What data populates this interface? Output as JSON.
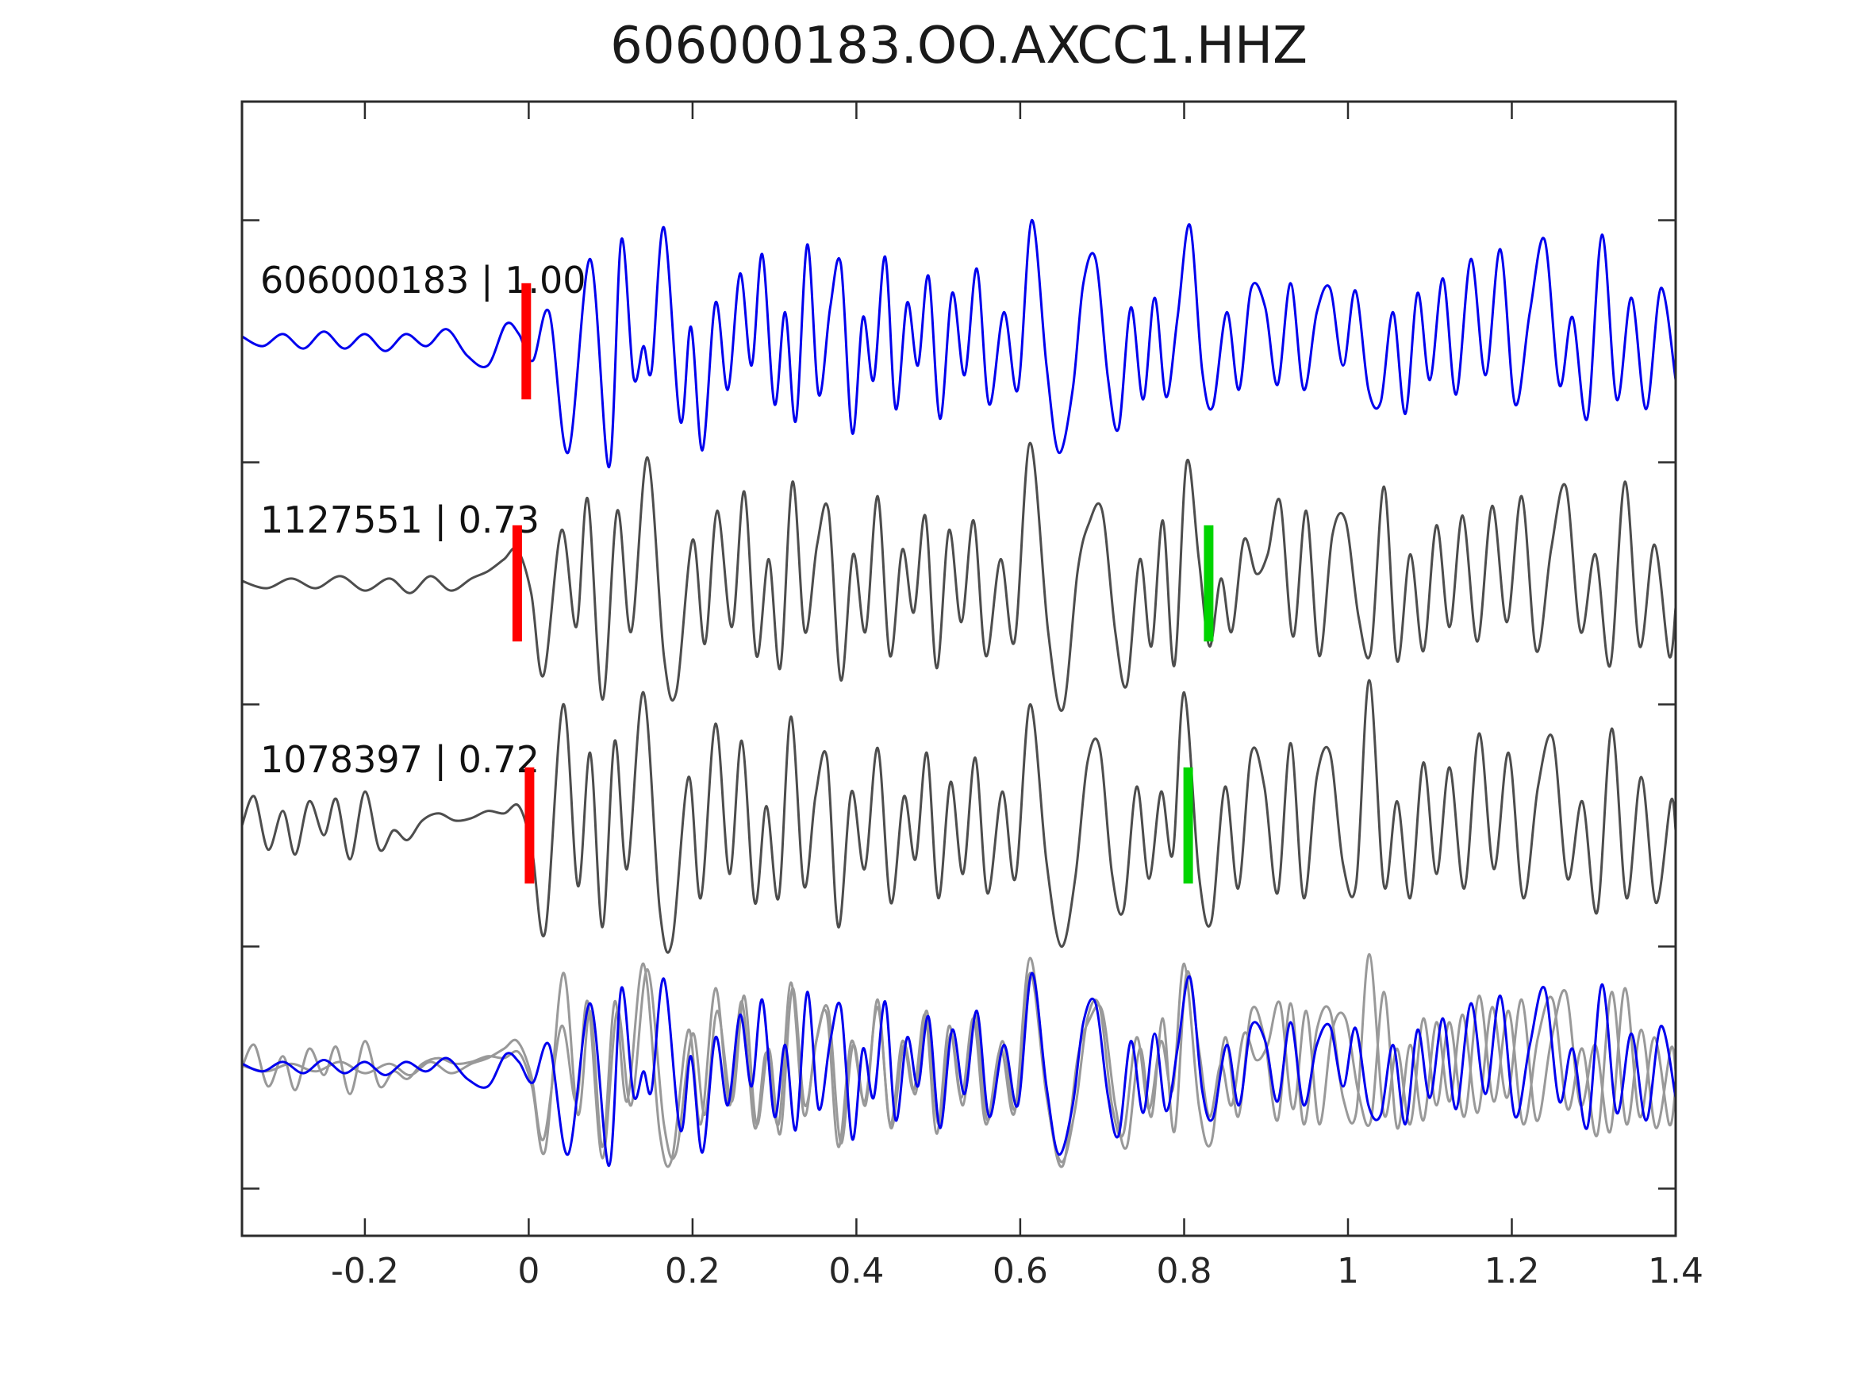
{
  "title": "606000183.OO.AXCC1.HHZ",
  "chart_data": {
    "type": "line",
    "description": "Template-matching waveform comparison: template trace, two detection traces with pick markers, and bottom overlay of all aligned traces",
    "x_axis": {
      "range": [
        -0.35,
        1.4
      ],
      "ticks": [
        {
          "t": -0.2,
          "label": "-0.2"
        },
        {
          "t": 0,
          "label": "0"
        },
        {
          "t": 0.2,
          "label": "0.2"
        },
        {
          "t": 0.4,
          "label": "0.4"
        },
        {
          "t": 0.6,
          "label": "0.6"
        },
        {
          "t": 0.8,
          "label": "0.8"
        },
        {
          "t": 1,
          "label": "1"
        },
        {
          "t": 1.2,
          "label": "1.2"
        },
        {
          "t": 1.4,
          "label": "1.4"
        }
      ]
    },
    "y_axis": {
      "tick_offsets": [
        0.5,
        -0.5,
        -1.5,
        -2.5,
        -3.5
      ]
    },
    "colors": {
      "template_blue": "#0000ee",
      "detection_gray": "#4d4d4d",
      "overlay_gray": "#999999",
      "pick_red": "#ff0000",
      "pick_green": "#00d400",
      "frame": "#2b2b2b",
      "text": "#1a1a1a"
    },
    "traces": [
      {
        "id": "606000183",
        "label": "606000183 | 1.00",
        "correlation": "1.00",
        "role": "template",
        "color": "#0000ee",
        "picks": [
          {
            "t": -0.003,
            "color": "#ff0000",
            "name": "pick-red-template"
          }
        ],
        "points": [
          -0.35,
          0.02,
          -0.325,
          -0.02,
          -0.3,
          0.03,
          -0.275,
          -0.03,
          -0.25,
          0.04,
          -0.225,
          -0.03,
          -0.2,
          0.03,
          -0.175,
          -0.04,
          -0.15,
          0.03,
          -0.125,
          -0.02,
          -0.1,
          0.05,
          -0.075,
          -0.06,
          -0.05,
          -0.1,
          -0.028,
          0.07,
          -0.012,
          0.03,
          0.005,
          -0.08,
          0.025,
          0.12,
          0.048,
          -0.46,
          0.075,
          0.34,
          0.098,
          -0.52,
          0.113,
          0.42,
          0.128,
          -0.15,
          0.14,
          -0.02,
          0.15,
          -0.12,
          0.165,
          0.47,
          0.185,
          -0.33,
          0.198,
          0.06,
          0.212,
          -0.45,
          0.228,
          0.16,
          0.243,
          -0.2,
          0.258,
          0.28,
          0.272,
          -0.1,
          0.285,
          0.36,
          0.3,
          -0.26,
          0.313,
          0.12,
          0.326,
          -0.33,
          0.34,
          0.4,
          0.354,
          -0.22,
          0.368,
          0.14,
          0.381,
          0.32,
          0.395,
          -0.38,
          0.408,
          0.1,
          0.421,
          -0.16,
          0.435,
          0.35,
          0.448,
          -0.28,
          0.462,
          0.16,
          0.475,
          -0.1,
          0.488,
          0.27,
          0.502,
          -0.32,
          0.517,
          0.2,
          0.532,
          -0.14,
          0.547,
          0.3,
          0.562,
          -0.26,
          0.58,
          0.12,
          0.597,
          -0.2,
          0.614,
          0.5,
          0.632,
          -0.1,
          0.647,
          -0.46,
          0.664,
          -0.2,
          0.677,
          0.24,
          0.692,
          0.34,
          0.707,
          -0.15,
          0.72,
          -0.36,
          0.735,
          0.14,
          0.75,
          -0.24,
          0.764,
          0.18,
          0.778,
          -0.23,
          0.792,
          0.1,
          0.807,
          0.48,
          0.822,
          -0.12,
          0.835,
          -0.27,
          0.852,
          0.12,
          0.867,
          -0.2,
          0.882,
          0.22,
          0.899,
          0.14,
          0.914,
          -0.18,
          0.93,
          0.24,
          0.946,
          -0.2,
          0.962,
          0.12,
          0.978,
          0.22,
          0.994,
          -0.1,
          1.009,
          0.21,
          1.025,
          -0.2,
          1.04,
          -0.25,
          1.055,
          0.12,
          1.07,
          -0.3,
          1.085,
          0.2,
          1.1,
          -0.16,
          1.116,
          0.26,
          1.132,
          -0.22,
          1.15,
          0.34,
          1.168,
          -0.14,
          1.186,
          0.38,
          1.204,
          -0.26,
          1.222,
          0.12,
          1.24,
          0.42,
          1.258,
          -0.18,
          1.274,
          0.1,
          1.292,
          -0.32,
          1.31,
          0.44,
          1.328,
          -0.24,
          1.346,
          0.18,
          1.364,
          -0.28,
          1.382,
          0.22,
          1.4,
          -0.16
        ]
      },
      {
        "id": "1127551",
        "label": "1127551 | 0.73",
        "correlation": "0.73",
        "role": "detection",
        "color": "#4d4d4d",
        "picks": [
          {
            "t": -0.014,
            "color": "#ff0000",
            "name": "pick-red-detection-1"
          },
          {
            "t": 0.83,
            "color": "#00d400",
            "name": "pick-green-detection-1"
          }
        ],
        "points": [
          -0.35,
          0.01,
          -0.32,
          -0.02,
          -0.29,
          0.02,
          -0.26,
          -0.02,
          -0.23,
          0.03,
          -0.2,
          -0.03,
          -0.17,
          0.02,
          -0.145,
          -0.04,
          -0.12,
          0.03,
          -0.095,
          -0.03,
          -0.07,
          0.02,
          -0.05,
          0.05,
          -0.03,
          0.1,
          -0.014,
          0.14,
          0.003,
          -0.04,
          0.018,
          -0.38,
          0.04,
          0.22,
          0.058,
          -0.18,
          0.072,
          0.35,
          0.09,
          -0.48,
          0.108,
          0.3,
          0.125,
          -0.2,
          0.145,
          0.52,
          0.165,
          -0.3,
          0.18,
          -0.45,
          0.2,
          0.18,
          0.215,
          -0.25,
          0.23,
          0.3,
          0.248,
          -0.18,
          0.263,
          0.38,
          0.278,
          -0.3,
          0.293,
          0.1,
          0.307,
          -0.35,
          0.322,
          0.42,
          0.337,
          -0.2,
          0.352,
          0.16,
          0.366,
          0.3,
          0.381,
          -0.4,
          0.396,
          0.12,
          0.411,
          -0.2,
          0.426,
          0.36,
          0.441,
          -0.3,
          0.456,
          0.14,
          0.47,
          -0.12,
          0.484,
          0.28,
          0.498,
          -0.35,
          0.513,
          0.22,
          0.528,
          -0.16,
          0.543,
          0.26,
          0.558,
          -0.3,
          0.576,
          0.1,
          0.593,
          -0.24,
          0.612,
          0.58,
          0.634,
          -0.2,
          0.652,
          -0.52,
          0.67,
          0.05,
          0.684,
          0.25,
          0.7,
          0.3,
          0.716,
          -0.2,
          0.73,
          -0.42,
          0.746,
          0.1,
          0.76,
          -0.26,
          0.774,
          0.26,
          0.788,
          -0.34,
          0.803,
          0.5,
          0.818,
          0.1,
          0.831,
          -0.26,
          0.845,
          0.02,
          0.858,
          -0.2,
          0.873,
          0.18,
          0.888,
          0.04,
          0.902,
          0.12,
          0.917,
          0.34,
          0.933,
          -0.22,
          0.949,
          0.3,
          0.965,
          -0.3,
          0.981,
          0.2,
          0.997,
          0.26,
          1.013,
          -0.14,
          1.028,
          -0.28,
          1.044,
          0.4,
          1.06,
          -0.32,
          1.076,
          0.12,
          1.092,
          -0.28,
          1.108,
          0.24,
          1.124,
          -0.18,
          1.14,
          0.28,
          1.158,
          -0.24,
          1.176,
          0.32,
          1.194,
          -0.16,
          1.212,
          0.36,
          1.23,
          -0.28,
          1.248,
          0.14,
          1.266,
          0.4,
          1.284,
          -0.2,
          1.302,
          0.12,
          1.32,
          -0.34,
          1.338,
          0.42,
          1.356,
          -0.26,
          1.374,
          0.16,
          1.392,
          -0.3,
          1.4,
          -0.1
        ]
      },
      {
        "id": "1078397",
        "label": "1078397 | 0.72",
        "correlation": "0.72",
        "role": "detection",
        "color": "#4d4d4d",
        "picks": [
          {
            "t": 0.001,
            "color": "#ff0000",
            "name": "pick-red-detection-2"
          },
          {
            "t": 0.805,
            "color": "#00d400",
            "name": "pick-green-detection-2"
          }
        ],
        "points": [
          -0.35,
          0,
          -0.335,
          0.12,
          -0.318,
          -0.1,
          -0.3,
          0.06,
          -0.285,
          -0.12,
          -0.268,
          0.1,
          -0.25,
          -0.04,
          -0.235,
          0.11,
          -0.218,
          -0.14,
          -0.2,
          0.14,
          -0.182,
          -0.1,
          -0.165,
          -0.02,
          -0.148,
          -0.06,
          -0.13,
          0.02,
          -0.11,
          0.05,
          -0.09,
          0.02,
          -0.07,
          0.03,
          -0.05,
          0.06,
          -0.03,
          0.05,
          -0.012,
          0.08,
          0.004,
          -0.1,
          0.02,
          -0.44,
          0.042,
          0.5,
          0.06,
          -0.25,
          0.075,
          0.3,
          0.09,
          -0.42,
          0.105,
          0.35,
          0.12,
          -0.18,
          0.14,
          0.55,
          0.16,
          -0.35,
          0.175,
          -0.48,
          0.195,
          0.2,
          0.21,
          -0.3,
          0.228,
          0.42,
          0.245,
          -0.2,
          0.26,
          0.35,
          0.276,
          -0.32,
          0.29,
          0.08,
          0.305,
          -0.3,
          0.32,
          0.45,
          0.336,
          -0.25,
          0.35,
          0.12,
          0.364,
          0.28,
          0.378,
          -0.42,
          0.394,
          0.14,
          0.41,
          -0.18,
          0.426,
          0.32,
          0.442,
          -0.32,
          0.458,
          0.12,
          0.472,
          -0.14,
          0.486,
          0.3,
          0.5,
          -0.3,
          0.515,
          0.18,
          0.53,
          -0.2,
          0.545,
          0.28,
          0.56,
          -0.28,
          0.578,
          0.14,
          0.594,
          -0.22,
          0.612,
          0.5,
          0.632,
          -0.15,
          0.65,
          -0.5,
          0.667,
          -0.22,
          0.682,
          0.26,
          0.697,
          0.32,
          0.712,
          -0.2,
          0.726,
          -0.35,
          0.742,
          0.16,
          0.757,
          -0.22,
          0.772,
          0.14,
          0.786,
          -0.12,
          0.8,
          0.55,
          0.818,
          -0.2,
          0.833,
          -0.4,
          0.85,
          0.16,
          0.866,
          -0.26,
          0.882,
          0.3,
          0.898,
          0.16,
          0.914,
          -0.28,
          0.93,
          0.34,
          0.946,
          -0.3,
          0.962,
          0.2,
          0.978,
          0.3,
          0.994,
          -0.16,
          1.01,
          -0.24,
          1.026,
          0.6,
          1.044,
          -0.25,
          1.06,
          0.1,
          1.076,
          -0.3,
          1.092,
          0.26,
          1.108,
          -0.2,
          1.124,
          0.24,
          1.142,
          -0.26,
          1.16,
          0.38,
          1.178,
          -0.18,
          1.196,
          0.3,
          1.214,
          -0.3,
          1.232,
          0.16,
          1.25,
          0.36,
          1.268,
          -0.22,
          1.286,
          0.1,
          1.304,
          -0.36,
          1.322,
          0.4,
          1.34,
          -0.3,
          1.358,
          0.2,
          1.376,
          -0.32,
          1.394,
          0.1,
          1.4,
          -0.02
        ]
      }
    ],
    "overlay": {
      "description": "Bottom row: aligned overlay of both detections (gray) and template (blue)",
      "series": [
        {
          "trace": 1,
          "color": "#999999",
          "scale": 0.78
        },
        {
          "trace": 2,
          "color": "#999999",
          "scale": 0.78
        },
        {
          "trace": 0,
          "color": "#0000ee",
          "scale": 0.78
        }
      ]
    }
  }
}
